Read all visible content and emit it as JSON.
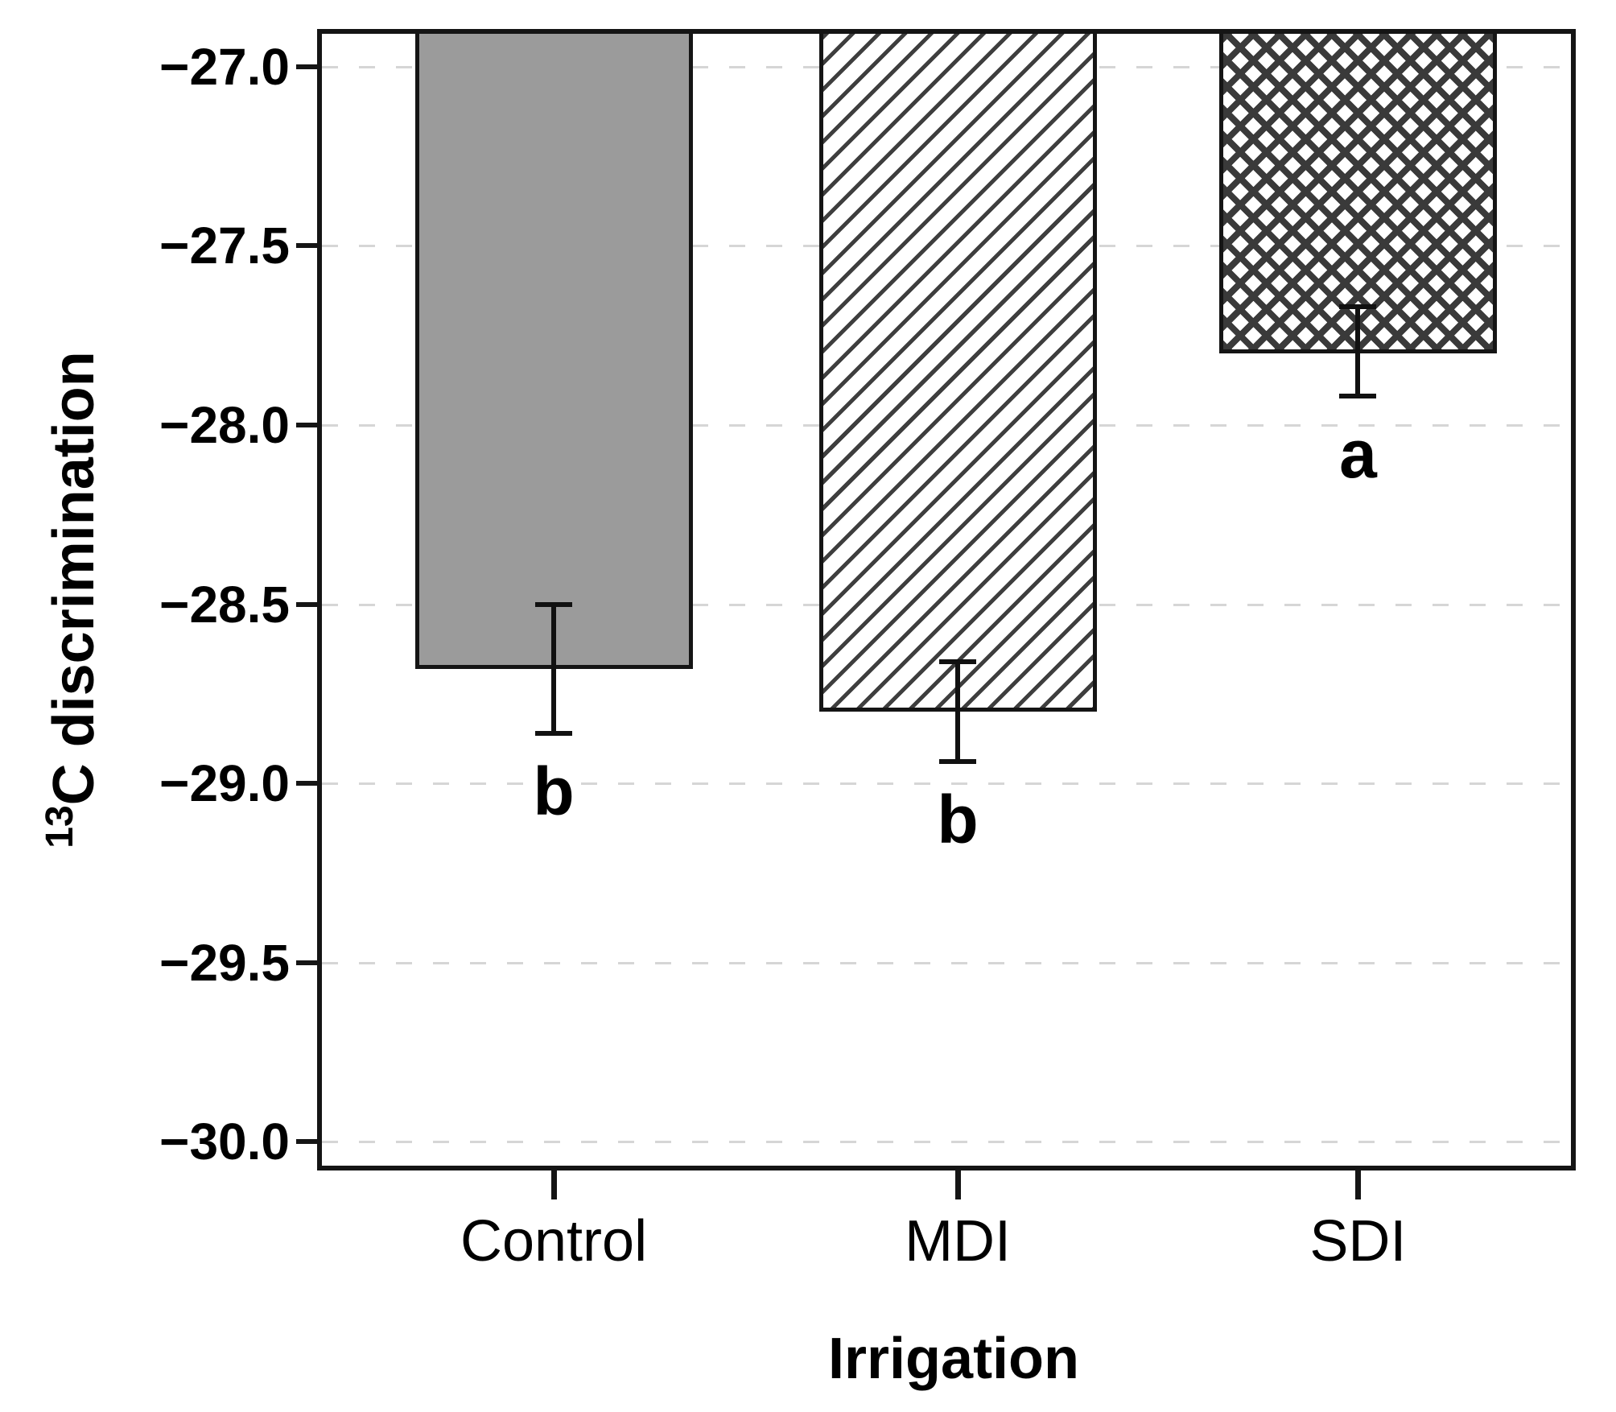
{
  "chart_data": {
    "type": "bar",
    "title": "",
    "xlabel": "Irrigation",
    "ylabel": "13C discrimination",
    "ylabel_superscript": "13",
    "ylabel_text": "C discrimination",
    "categories": [
      "Control",
      "MDI",
      "SDI"
    ],
    "values": [
      -28.68,
      -28.8,
      -27.8
    ],
    "errors": [
      {
        "top": -28.5,
        "bottom": -28.86
      },
      {
        "top": -28.66,
        "bottom": -28.94
      },
      {
        "top": -27.67,
        "bottom": -27.92
      }
    ],
    "sig_letters": [
      "b",
      "b",
      "a"
    ],
    "bar_patterns": [
      "solid-gray",
      "diagonal-hatch",
      "crosshatch"
    ],
    "y_ticks": [
      -27.0,
      -27.5,
      -28.0,
      -28.5,
      -29.0,
      -29.5,
      -30.0
    ],
    "y_tick_labels": [
      "−27.0",
      "−27.5",
      "−28.0",
      "−28.5",
      "−29.0",
      "−29.5",
      "−30.0"
    ],
    "ylim": [
      -30.08,
      -26.9
    ],
    "grid": {
      "axis": "y",
      "style": "dashed",
      "color": "#d6d6d6"
    },
    "legend": "none",
    "colors": {
      "bar_fill_gray": "#9b9b9b",
      "hatch_line": "#3e3e3e",
      "border": "#151515",
      "text": "#000000",
      "gridline": "#d6d6d6",
      "background": "#ffffff"
    }
  }
}
